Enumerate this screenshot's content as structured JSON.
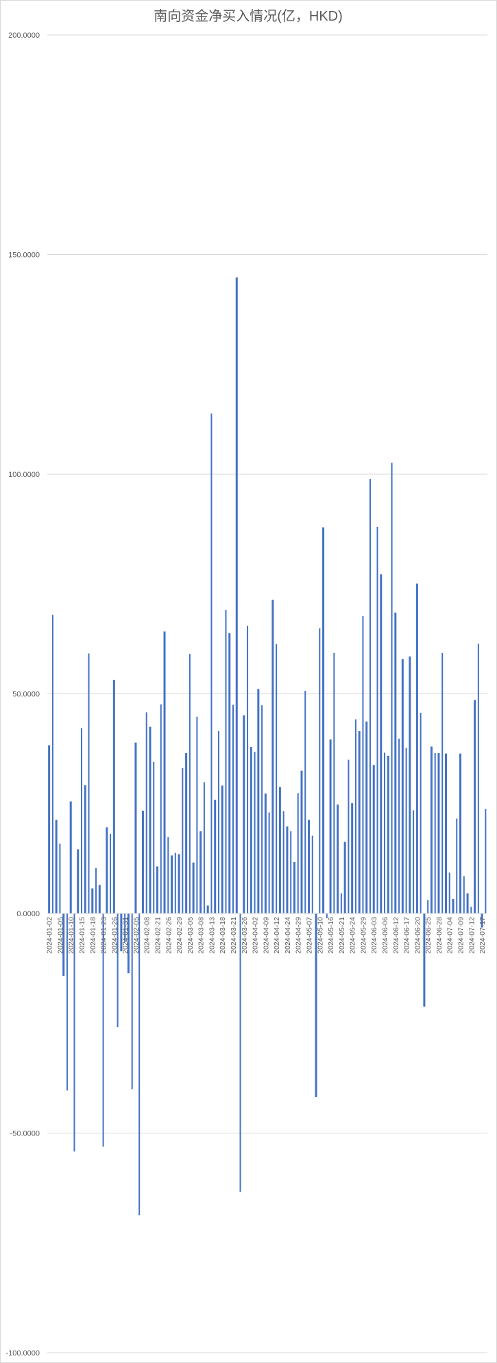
{
  "chart_data": {
    "type": "bar",
    "title": "南向资金净买入情况(亿，HKD)",
    "xlabel": "",
    "ylabel": "",
    "ylim": [
      -100,
      200
    ],
    "yticks": [
      "200.0000",
      "150.0000",
      "100.0000",
      "50.0000",
      "0.0000",
      "-50.0000",
      "-100.0000"
    ],
    "ytick_values": [
      200,
      150,
      100,
      50,
      0,
      -50,
      -100
    ],
    "grid": true,
    "legend": "none",
    "bar_color": "#4472C4",
    "category_labels": [
      {
        "index": 0,
        "label": "2024-01-02"
      },
      {
        "index": 3,
        "label": "2024-01-05"
      },
      {
        "index": 6,
        "label": "2024-01-10"
      },
      {
        "index": 9,
        "label": "2024-01-15"
      },
      {
        "index": 12,
        "label": "2024-01-18"
      },
      {
        "index": 15,
        "label": "2024-01-23"
      },
      {
        "index": 18,
        "label": "2024-01-26"
      },
      {
        "index": 21,
        "label": "2024-01-31"
      },
      {
        "index": 24,
        "label": "2024-02-05"
      },
      {
        "index": 27,
        "label": "2024-02-08"
      },
      {
        "index": 30,
        "label": "2024-02-21"
      },
      {
        "index": 33,
        "label": "2024-02-26"
      },
      {
        "index": 36,
        "label": "2024-02-29"
      },
      {
        "index": 39,
        "label": "2024-03-05"
      },
      {
        "index": 42,
        "label": "2024-03-08"
      },
      {
        "index": 45,
        "label": "2024-03-13"
      },
      {
        "index": 48,
        "label": "2024-03-18"
      },
      {
        "index": 51,
        "label": "2024-03-21"
      },
      {
        "index": 54,
        "label": "2024-03-26"
      },
      {
        "index": 57,
        "label": "2024-04-02"
      },
      {
        "index": 60,
        "label": "2024-04-09"
      },
      {
        "index": 63,
        "label": "2024-04-12"
      },
      {
        "index": 66,
        "label": "2024-04-24"
      },
      {
        "index": 69,
        "label": "2024-04-29"
      },
      {
        "index": 72,
        "label": "2024-05-07"
      },
      {
        "index": 75,
        "label": "2024-05-10"
      },
      {
        "index": 78,
        "label": "2024-05-16"
      },
      {
        "index": 81,
        "label": "2024-05-21"
      },
      {
        "index": 84,
        "label": "2024-05-24"
      },
      {
        "index": 87,
        "label": "2024-05-29"
      },
      {
        "index": 90,
        "label": "2024-06-03"
      },
      {
        "index": 93,
        "label": "2024-06-06"
      },
      {
        "index": 96,
        "label": "2024-06-12"
      },
      {
        "index": 99,
        "label": "2024-06-17"
      },
      {
        "index": 102,
        "label": "2024-06-20"
      },
      {
        "index": 105,
        "label": "2024-06-25"
      },
      {
        "index": 108,
        "label": "2024-06-28"
      },
      {
        "index": 111,
        "label": "2024-07-04"
      },
      {
        "index": 114,
        "label": "2024-07-09"
      },
      {
        "index": 117,
        "label": "2024-07-12"
      },
      {
        "index": 120,
        "label": "2024-07-17"
      }
    ],
    "values": [
      38.3,
      68.0,
      21.3,
      15.9,
      -14.2,
      -40.3,
      25.5,
      -54.2,
      14.6,
      42.2,
      29.2,
      59.2,
      5.7,
      10.3,
      6.5,
      -53.1,
      19.6,
      18.1,
      53.2,
      -25.9,
      -8.6,
      -6.5,
      -13.6,
      -40.0,
      38.9,
      -68.7,
      23.4,
      45.8,
      42.5,
      34.5,
      10.7,
      47.6,
      64.2,
      17.4,
      13.2,
      13.8,
      13.5,
      33.1,
      36.5,
      59.1,
      11.6,
      44.8,
      18.7,
      29.9,
      1.8,
      113.8,
      25.9,
      41.5,
      29.1,
      69.1,
      63.8,
      47.5,
      144.8,
      -63.4,
      45.1,
      65.5,
      37.9,
      36.8,
      51.1,
      47.4,
      27.3,
      23.0,
      71.4,
      61.3,
      28.8,
      23.3,
      19.8,
      18.7,
      11.7,
      27.4,
      32.5,
      50.7,
      21.3,
      17.7,
      -41.8,
      64.9,
      87.9,
      -1.1,
      39.6,
      59.3,
      24.8,
      4.6,
      16.3,
      35.0,
      25.1,
      44.2,
      41.5,
      67.7,
      43.7,
      98.9,
      33.8,
      88.0,
      77.2,
      36.6,
      35.9,
      102.6,
      68.5,
      39.8,
      57.9,
      37.7,
      58.5,
      23.5,
      75.1,
      45.7,
      -21.2,
      3.1,
      38.0,
      36.5,
      36.5,
      59.3,
      36.4,
      9.3,
      3.3,
      21.6,
      36.4,
      8.5,
      4.6,
      1.5,
      48.6,
      61.4,
      -3.2,
      23.8
    ]
  }
}
